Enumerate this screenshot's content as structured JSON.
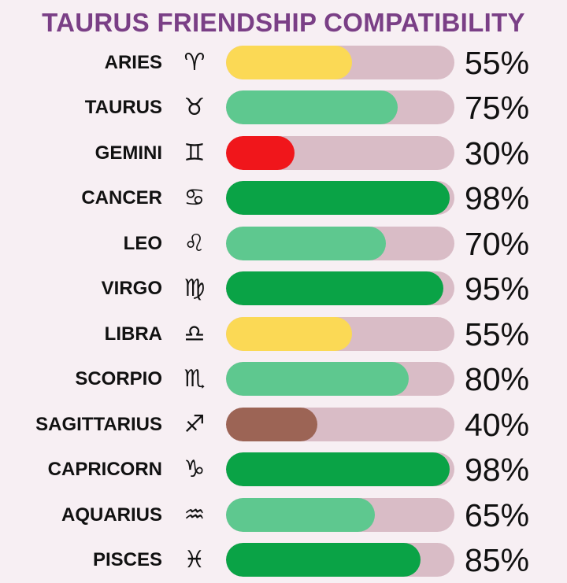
{
  "chart_data": {
    "type": "bar",
    "orientation": "horizontal",
    "title": "TAURUS FRIENDSHIP COMPATIBILITY",
    "xlim": [
      0,
      100
    ],
    "unit": "%",
    "track_color": "#d9bcc6",
    "title_color": "#7a3f86",
    "categories": [
      "ARIES",
      "TAURUS",
      "GEMINI",
      "CANCER",
      "LEO",
      "VIRGO",
      "LIBRA",
      "SCORPIO",
      "SAGITTARIUS",
      "CAPRICORN",
      "AQUARIUS",
      "PISCES"
    ],
    "symbols": [
      "♈",
      "♉",
      "♊",
      "♋",
      "♌",
      "♍",
      "♎",
      "♏",
      "♐",
      "♑",
      "♒",
      "♓"
    ],
    "values": [
      55,
      75,
      30,
      98,
      70,
      95,
      55,
      80,
      40,
      98,
      65,
      85
    ],
    "labels": [
      "55%",
      "75%",
      "30%",
      "98%",
      "70%",
      "95%",
      "55%",
      "80%",
      "40%",
      "98%",
      "65%",
      "85%"
    ],
    "colors": [
      "#fbd955",
      "#5ec88f",
      "#f0161b",
      "#0aa346",
      "#5ec88f",
      "#0aa346",
      "#fbd955",
      "#5ec88f",
      "#9c6455",
      "#0aa346",
      "#5ec88f",
      "#0aa346"
    ]
  }
}
